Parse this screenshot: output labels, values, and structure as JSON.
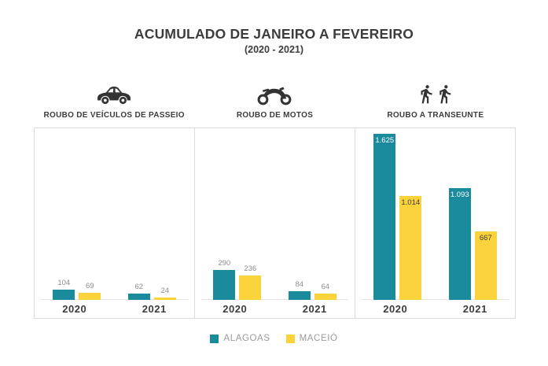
{
  "title": "ACUMULADO DE JANEIRO A FEVEREIRO",
  "subtitle": "(2020 - 2021)",
  "colors": {
    "alagoas_teal": "#1A8A9D",
    "maceio_yellow": "#FAD33C",
    "dark_text": "#3C3C3C",
    "value_label_gray": "#8C8C8C",
    "legend_text_gray": "#9B9B9B",
    "panel_border": "#DBDBDB",
    "icon_dark": "#333333"
  },
  "legend": [
    {
      "label": "ALAGOAS",
      "color": "#1A8A9D"
    },
    {
      "label": "MACEIÓ",
      "color": "#FAD33C"
    }
  ],
  "chart_data": [
    {
      "type": "bar",
      "title": "ROUBO DE VEÍCULOS DE PASSEIO",
      "icon": "car-icon",
      "categories": [
        "2020",
        "2021"
      ],
      "series": [
        {
          "name": "ALAGOAS",
          "color": "#1A8A9D",
          "values": [
            104,
            62
          ],
          "labels": [
            "104",
            "62"
          ],
          "label_color": "#8C8C8C"
        },
        {
          "name": "MACEIÓ",
          "color": "#FAD33C",
          "values": [
            69,
            24
          ],
          "labels": [
            "69",
            "24"
          ],
          "label_color": "#8C8C8C"
        }
      ],
      "value_label_position": "above",
      "ylim": [
        0,
        1680
      ],
      "grid": false
    },
    {
      "type": "bar",
      "title": "ROUBO DE MOTOS",
      "icon": "motorcycle-icon",
      "categories": [
        "2020",
        "2021"
      ],
      "series": [
        {
          "name": "ALAGOAS",
          "color": "#1A8A9D",
          "values": [
            290,
            84
          ],
          "labels": [
            "290",
            "84"
          ],
          "label_color": "#8C8C8C"
        },
        {
          "name": "MACEIÓ",
          "color": "#FAD33C",
          "values": [
            236,
            64
          ],
          "labels": [
            "236",
            "64"
          ],
          "label_color": "#8C8C8C"
        }
      ],
      "value_label_position": "above",
      "ylim": [
        0,
        1680
      ],
      "grid": false
    },
    {
      "type": "bar",
      "title": "ROUBO A TRANSEUNTE",
      "icon": "pedestrians-icon",
      "categories": [
        "2020",
        "2021"
      ],
      "series": [
        {
          "name": "ALAGOAS",
          "color": "#1A8A9D",
          "values": [
            1625,
            1093
          ],
          "labels": [
            "1.625",
            "1.093"
          ],
          "label_color": "#FFFFFF"
        },
        {
          "name": "MACEIÓ",
          "color": "#FAD33C",
          "values": [
            1014,
            667
          ],
          "labels": [
            "1.014",
            "667"
          ],
          "label_color": "#3C3C3C"
        }
      ],
      "value_label_position": "inside",
      "ylim": [
        0,
        1680
      ],
      "grid": false
    }
  ]
}
